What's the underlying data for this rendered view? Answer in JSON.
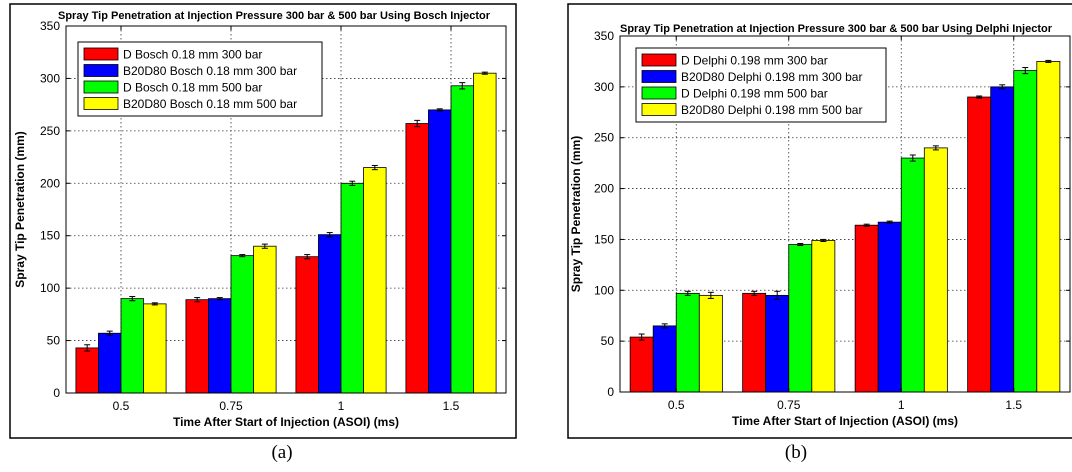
{
  "chart_data": [
    {
      "type": "bar",
      "title": "Spray Tip Penetration at Injection Pressure 300 bar & 500 bar Using Bosch Injector",
      "xlabel": "Time After Start of Injection (ASOI) (ms)",
      "ylabel": "Spray Tip Penetration (mm)",
      "ylim": [
        0,
        350
      ],
      "yticks": [
        0,
        50,
        100,
        150,
        200,
        250,
        300,
        350
      ],
      "grid": true,
      "legend_position": "top-left",
      "error_bars": true,
      "categories": [
        "0.5",
        "0.75",
        "1",
        "1.5"
      ],
      "series": [
        {
          "name": "D Bosch 0.18 mm 300 bar",
          "color": "#ff0000",
          "values": [
            43,
            89,
            130,
            257
          ],
          "errors": [
            3,
            2,
            2,
            3
          ]
        },
        {
          "name": "B20D80 Bosch 0.18 mm 300 bar",
          "color": "#0000ff",
          "values": [
            57,
            90,
            151,
            270
          ],
          "errors": [
            2,
            1,
            2,
            1
          ]
        },
        {
          "name": "D Bosch 0.18  mm 500 bar",
          "color": "#00ff00",
          "values": [
            90,
            131,
            200,
            293
          ],
          "errors": [
            2,
            1,
            2,
            3
          ]
        },
        {
          "name": "B20D80 Bosch 0.18 mm 500 bar",
          "color": "#ffff00",
          "values": [
            85,
            140,
            215,
            305
          ],
          "errors": [
            1,
            2,
            2,
            1
          ]
        }
      ]
    },
    {
      "type": "bar",
      "title": "Spray Tip Penetration at Injection Pressure 300 bar & 500 bar Using Delphi Injector",
      "xlabel": "Time After Start of Injection (ASOI) (ms)",
      "ylabel": "Spray Tip Penetration (mm)",
      "ylim": [
        0,
        350
      ],
      "yticks": [
        0,
        50,
        100,
        150,
        200,
        250,
        300,
        350
      ],
      "grid": true,
      "legend_position": "top-left",
      "error_bars": true,
      "categories": [
        "0.5",
        "0.75",
        "1",
        "1.5"
      ],
      "series": [
        {
          "name": "D Delphi 0.198 mm 300 bar",
          "color": "#ff0000",
          "values": [
            54,
            97,
            164,
            290
          ],
          "errors": [
            3,
            2,
            1,
            1
          ]
        },
        {
          "name": "B20D80 Delphi 0.198 mm 300 bar",
          "color": "#0000ff",
          "values": [
            65,
            95,
            167,
            300
          ],
          "errors": [
            2,
            4,
            1,
            2
          ]
        },
        {
          "name": "D Delphi 0.198 mm 500 bar",
          "color": "#00ff00",
          "values": [
            97,
            145,
            230,
            316
          ],
          "errors": [
            2,
            1,
            3,
            3
          ]
        },
        {
          "name": "B20D80 Delphi 0.198  mm 500 bar",
          "color": "#ffff00",
          "values": [
            95,
            149,
            240,
            325
          ],
          "errors": [
            3,
            1,
            2,
            1
          ]
        }
      ]
    }
  ],
  "panel_labels": [
    "(a)",
    "(b)"
  ]
}
